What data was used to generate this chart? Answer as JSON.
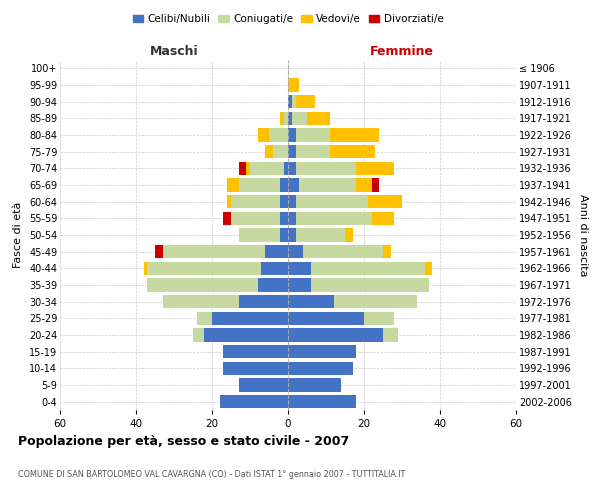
{
  "age_groups": [
    "0-4",
    "5-9",
    "10-14",
    "15-19",
    "20-24",
    "25-29",
    "30-34",
    "35-39",
    "40-44",
    "45-49",
    "50-54",
    "55-59",
    "60-64",
    "65-69",
    "70-74",
    "75-79",
    "80-84",
    "85-89",
    "90-94",
    "95-99",
    "100+"
  ],
  "birth_years": [
    "2002-2006",
    "1997-2001",
    "1992-1996",
    "1987-1991",
    "1982-1986",
    "1977-1981",
    "1972-1976",
    "1967-1971",
    "1962-1966",
    "1957-1961",
    "1952-1956",
    "1947-1951",
    "1942-1946",
    "1937-1941",
    "1932-1936",
    "1927-1931",
    "1922-1926",
    "1917-1921",
    "1912-1916",
    "1907-1911",
    "≤ 1906"
  ],
  "colors": {
    "celibi": "#4472c4",
    "coniugati": "#c5d9a0",
    "vedovi": "#ffc000",
    "divorziati": "#cc0000"
  },
  "maschi": {
    "celibi": [
      18,
      13,
      17,
      17,
      22,
      20,
      13,
      8,
      7,
      6,
      2,
      2,
      2,
      2,
      1,
      0,
      0,
      0,
      0,
      0,
      0
    ],
    "coniugati": [
      0,
      0,
      0,
      0,
      3,
      4,
      20,
      29,
      30,
      27,
      11,
      13,
      13,
      11,
      9,
      4,
      5,
      1,
      0,
      0,
      0
    ],
    "vedovi": [
      0,
      0,
      0,
      0,
      0,
      0,
      0,
      0,
      1,
      0,
      0,
      0,
      1,
      3,
      1,
      2,
      3,
      1,
      0,
      0,
      0
    ],
    "divorziati": [
      0,
      0,
      0,
      0,
      0,
      0,
      0,
      0,
      0,
      2,
      0,
      2,
      0,
      0,
      2,
      0,
      0,
      0,
      0,
      0,
      0
    ]
  },
  "femmine": {
    "celibi": [
      18,
      14,
      17,
      18,
      25,
      20,
      12,
      6,
      6,
      4,
      2,
      2,
      2,
      3,
      2,
      2,
      2,
      1,
      1,
      0,
      0
    ],
    "coniugati": [
      0,
      0,
      0,
      0,
      4,
      8,
      22,
      31,
      30,
      21,
      13,
      20,
      19,
      15,
      16,
      9,
      9,
      4,
      1,
      0,
      0
    ],
    "vedovi": [
      0,
      0,
      0,
      0,
      0,
      0,
      0,
      0,
      2,
      2,
      2,
      6,
      9,
      4,
      10,
      12,
      13,
      6,
      5,
      3,
      0
    ],
    "divorziati": [
      0,
      0,
      0,
      0,
      0,
      0,
      0,
      0,
      0,
      0,
      0,
      0,
      0,
      2,
      0,
      0,
      0,
      0,
      0,
      0,
      0
    ]
  },
  "xlim": 60,
  "title": "Popolazione per età, sesso e stato civile - 2007",
  "subtitle": "COMUNE DI SAN BARTOLOMEO VAL CAVARGNA (CO) - Dati ISTAT 1° gennaio 2007 - TUTTITALIA.IT",
  "xlabel_left": "Maschi",
  "xlabel_right": "Femmine",
  "ylabel": "Fasce di età",
  "ylabel_right": "Anni di nascita",
  "bg_color": "#ffffff",
  "grid_color": "#cccccc",
  "bar_height": 0.8
}
